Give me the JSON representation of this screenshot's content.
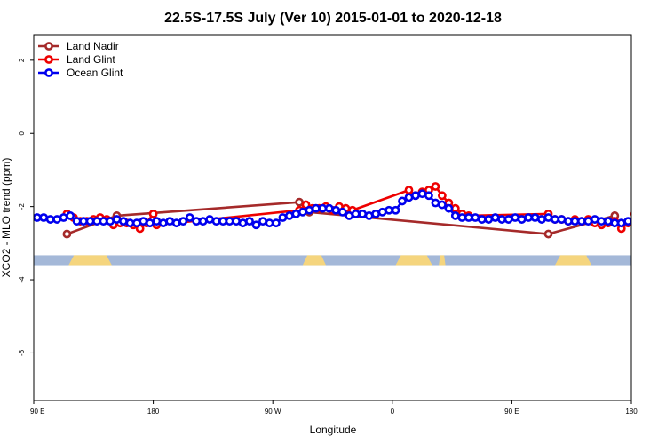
{
  "chart_data": {
    "type": "line",
    "title": "22.5S-17.5S July (Ver 10)   2015-01-01 to 2020-12-18",
    "xlabel": "Longitude",
    "ylabel": "XCO2 - MLO trend (ppm)",
    "xlim": [
      90,
      450
    ],
    "ylim": [
      -7.3,
      2.7
    ],
    "x_ticks": [
      {
        "value": 90,
        "label": "90 E"
      },
      {
        "value": 162,
        "label": "180"
      },
      {
        "value": 234,
        "label": "90 W"
      },
      {
        "value": 306,
        "label": "0"
      },
      {
        "value": 378,
        "label": "90 E"
      },
      {
        "value": 450,
        "label": "180"
      }
    ],
    "y_ticks": [
      {
        "value": 2,
        "label": "2"
      },
      {
        "value": 0,
        "label": "0"
      },
      {
        "value": -2,
        "label": "-2"
      },
      {
        "value": -4,
        "label": "-4"
      },
      {
        "value": -6,
        "label": "-6"
      }
    ],
    "land_mask": {
      "y_range": [
        -3.33,
        -3.6
      ],
      "ocean_color": "#a4b8d8",
      "land_color": "#f5d57e",
      "land_spans": [
        [
          111,
          137
        ],
        [
          252,
          266
        ],
        [
          308,
          330
        ],
        [
          334,
          338
        ],
        [
          404,
          426
        ]
      ]
    },
    "legend": {
      "position": "top-left"
    },
    "series": [
      {
        "name": "Land Nadir",
        "color": "#a52a2a",
        "x": [
          110,
          140,
          250,
          256,
          400,
          440
        ],
        "y": [
          -2.75,
          -2.25,
          -1.88,
          -2.15,
          -2.75,
          -2.25
        ]
      },
      {
        "name": "Land Glint",
        "color": "#ee0000",
        "x": [
          110,
          114,
          118,
          122,
          126,
          130,
          134,
          138,
          142,
          146,
          150,
          154,
          158,
          162,
          164,
          250,
          254,
          258,
          262,
          266,
          270,
          274,
          278,
          282,
          316,
          320,
          324,
          328,
          332,
          336,
          340,
          344,
          348,
          352,
          400,
          404,
          408,
          412,
          416,
          420,
          424,
          428,
          432,
          436,
          440,
          444,
          448,
          452
        ],
        "y": [
          -2.2,
          -2.3,
          -2.4,
          -2.4,
          -2.35,
          -2.3,
          -2.35,
          -2.5,
          -2.45,
          -2.45,
          -2.5,
          -2.6,
          -2.45,
          -2.2,
          -2.5,
          -2.1,
          -1.95,
          -2.05,
          -2.05,
          -2.0,
          -2.1,
          -2.0,
          -2.05,
          -2.1,
          -1.55,
          -1.7,
          -1.6,
          -1.55,
          -1.45,
          -1.7,
          -1.9,
          -2.05,
          -2.2,
          -2.25,
          -2.2,
          -2.35,
          -2.35,
          -2.4,
          -2.35,
          -2.4,
          -2.35,
          -2.45,
          -2.5,
          -2.45,
          -2.4,
          -2.6,
          -2.45,
          -2.2
        ],
        "continues_past_right_edge": true
      },
      {
        "name": "Ocean Glint",
        "color": "#0000ee",
        "x": [
          92,
          96,
          100,
          104,
          108,
          112,
          116,
          120,
          124,
          128,
          132,
          136,
          140,
          144,
          148,
          152,
          156,
          160,
          164,
          168,
          172,
          176,
          180,
          184,
          188,
          192,
          196,
          200,
          204,
          208,
          212,
          216,
          220,
          224,
          228,
          232,
          236,
          240,
          244,
          248,
          252,
          256,
          260,
          264,
          268,
          272,
          276,
          280,
          284,
          288,
          292,
          296,
          300,
          304,
          308,
          312,
          316,
          320,
          324,
          328,
          332,
          336,
          340,
          344,
          348,
          352,
          356,
          360,
          364,
          368,
          372,
          376,
          380,
          384,
          388,
          392,
          396,
          400,
          404,
          408,
          412,
          416,
          420,
          424,
          428,
          432,
          436,
          440,
          444,
          448,
          452
        ],
        "y": [
          -2.3,
          -2.3,
          -2.35,
          -2.35,
          -2.3,
          -2.25,
          -2.4,
          -2.4,
          -2.4,
          -2.4,
          -2.4,
          -2.4,
          -2.35,
          -2.4,
          -2.45,
          -2.45,
          -2.4,
          -2.45,
          -2.4,
          -2.45,
          -2.4,
          -2.45,
          -2.4,
          -2.3,
          -2.4,
          -2.4,
          -2.35,
          -2.4,
          -2.4,
          -2.4,
          -2.4,
          -2.45,
          -2.4,
          -2.5,
          -2.4,
          -2.45,
          -2.45,
          -2.3,
          -2.25,
          -2.2,
          -2.15,
          -2.1,
          -2.05,
          -2.05,
          -2.05,
          -2.1,
          -2.15,
          -2.25,
          -2.2,
          -2.2,
          -2.25,
          -2.2,
          -2.15,
          -2.1,
          -2.1,
          -1.85,
          -1.75,
          -1.7,
          -1.65,
          -1.7,
          -1.9,
          -1.95,
          -2.05,
          -2.25,
          -2.3,
          -2.3,
          -2.3,
          -2.35,
          -2.35,
          -2.3,
          -2.35,
          -2.35,
          -2.3,
          -2.35,
          -2.3,
          -2.3,
          -2.35,
          -2.3,
          -2.35,
          -2.35,
          -2.4,
          -2.4,
          -2.4,
          -2.4,
          -2.35,
          -2.4,
          -2.4,
          -2.45,
          -2.45,
          -2.4,
          -2.45
        ],
        "continues_past_right_edge": true
      }
    ]
  }
}
